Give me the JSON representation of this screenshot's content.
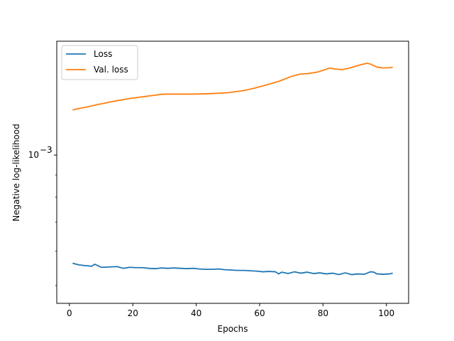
{
  "chart_data": {
    "type": "line",
    "title": "",
    "xlabel": "Epochs",
    "ylabel": "Negative log-likelihood",
    "yscale": "log",
    "xlim": [
      -4,
      107
    ],
    "ylim": [
      0.000455,
      0.00183
    ],
    "x_ticks": [
      0,
      20,
      40,
      60,
      80,
      100
    ],
    "x_tick_labels": [
      "0",
      "20",
      "40",
      "60",
      "80",
      "100"
    ],
    "y_major_ticks": [
      0.001
    ],
    "y_major_tick_labels": [
      "10",
      "−3"
    ],
    "y_minor_ticks": [
      0.0005,
      0.0006,
      0.0007,
      0.0008,
      0.0009
    ],
    "grid": false,
    "legend": {
      "position": "top-left",
      "entries": [
        "Loss",
        "Val. loss"
      ]
    },
    "colors": {
      "Loss": "#1f77b4",
      "Val. loss": "#ff7f0e"
    },
    "series": [
      {
        "name": "Loss",
        "x": [
          1,
          3,
          5,
          7,
          8,
          10,
          13,
          15,
          17,
          19,
          21,
          23,
          25,
          27,
          29,
          31,
          33,
          35,
          37,
          39,
          41,
          43,
          45,
          47,
          49,
          51,
          53,
          55,
          57,
          59,
          61,
          63,
          65,
          66,
          67,
          69,
          71,
          73,
          75,
          77,
          79,
          81,
          83,
          85,
          87,
          89,
          91,
          93,
          95,
          96,
          97,
          99,
          101,
          102
        ],
        "y": [
          0.000563,
          0.000558,
          0.000556,
          0.000554,
          0.00056,
          0.000551,
          0.000552,
          0.000553,
          0.000548,
          0.000551,
          0.00055,
          0.00055,
          0.000548,
          0.000547,
          0.000549,
          0.000548,
          0.000549,
          0.000548,
          0.000547,
          0.000548,
          0.000546,
          0.000545,
          0.000545,
          0.000546,
          0.000544,
          0.000543,
          0.000542,
          0.000542,
          0.000541,
          0.00054,
          0.000538,
          0.000539,
          0.000538,
          0.000532,
          0.000537,
          0.000533,
          0.000538,
          0.000534,
          0.000537,
          0.000533,
          0.000535,
          0.000532,
          0.000534,
          0.00053,
          0.000535,
          0.00053,
          0.000532,
          0.000531,
          0.000538,
          0.000537,
          0.000532,
          0.000531,
          0.000532,
          0.000534
        ]
      },
      {
        "name": "Val. loss",
        "x": [
          1,
          3,
          5,
          7,
          9,
          11,
          13,
          15,
          17,
          19,
          21,
          23,
          25,
          27,
          29,
          31,
          35,
          40,
          45,
          50,
          55,
          58,
          62,
          66,
          70,
          73,
          75,
          78,
          80,
          82,
          84,
          86,
          88,
          90,
          92,
          94,
          95,
          97,
          99,
          101,
          102
        ],
        "y": [
          0.00127,
          0.00128,
          0.001288,
          0.001298,
          0.001308,
          0.001316,
          0.001326,
          0.001334,
          0.001342,
          0.00135,
          0.001356,
          0.001362,
          0.001368,
          0.001374,
          0.00138,
          0.001382,
          0.001382,
          0.001382,
          0.001386,
          0.001392,
          0.001408,
          0.001424,
          0.00145,
          0.001478,
          0.001518,
          0.001538,
          0.00154,
          0.001552,
          0.001568,
          0.001586,
          0.001578,
          0.001574,
          0.001584,
          0.0016,
          0.001616,
          0.001628,
          0.00162,
          0.001595,
          0.001588,
          0.00159,
          0.001594
        ]
      }
    ]
  }
}
